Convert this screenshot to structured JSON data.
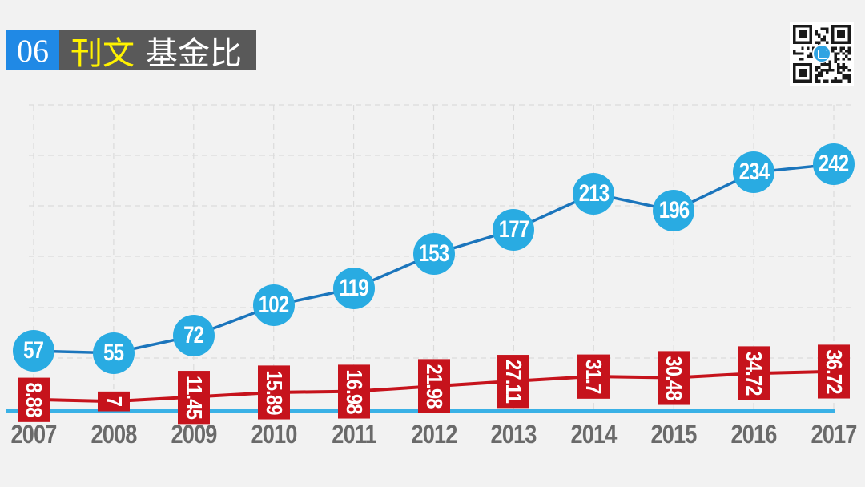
{
  "header": {
    "number": "06",
    "title_highlight": "刊文",
    "title_rest": "基金比"
  },
  "icons": {
    "qr": "qr-code",
    "qr_logo": "blue-round-seal-logo"
  },
  "colors": {
    "background": "#F2F2F2",
    "header_number_bg": "#2089E5",
    "header_title_bg": "#595959",
    "header_highlight": "#FFF200",
    "marker_blue": "#29ABE2",
    "line_blue": "#1B75BC",
    "series_red": "#C6131C",
    "baseline_cyan": "#3AB1E6",
    "grid": "#DBDBDB",
    "axis_text": "#6A6A6A"
  },
  "chart_data": {
    "type": "line",
    "title": "刊文 基金比",
    "categories": [
      "2007",
      "2008",
      "2009",
      "2010",
      "2011",
      "2012",
      "2013",
      "2014",
      "2015",
      "2016",
      "2017"
    ],
    "series": [
      {
        "name": "刊文",
        "marker": "circle",
        "color": "#29ABE2",
        "line_color": "#1B75BC",
        "values": [
          57,
          55,
          72,
          102,
          119,
          153,
          177,
          213,
          196,
          234,
          242
        ],
        "labels": [
          "57",
          "55",
          "72",
          "102",
          "119",
          "153",
          "177",
          "213",
          "196",
          "234",
          "242"
        ]
      },
      {
        "name": "基金比",
        "marker": "rotated-label-box",
        "color": "#C6131C",
        "values": [
          8.88,
          7,
          11.45,
          15.89,
          16.98,
          21.98,
          27.11,
          31.7,
          30.48,
          34.72,
          36.72
        ],
        "labels": [
          "8.88",
          "7",
          "11.45",
          "15.89",
          "16.98",
          "21.98",
          "27.11",
          "31.7",
          "30.48",
          "34.72",
          "36.72"
        ]
      }
    ],
    "xlabel": "",
    "ylabel": "",
    "ylim": [
      0,
      300
    ],
    "grid": "dashed both axes, no tick labels",
    "legend": "none",
    "baseline": "cyan horizontal line at y=0"
  }
}
